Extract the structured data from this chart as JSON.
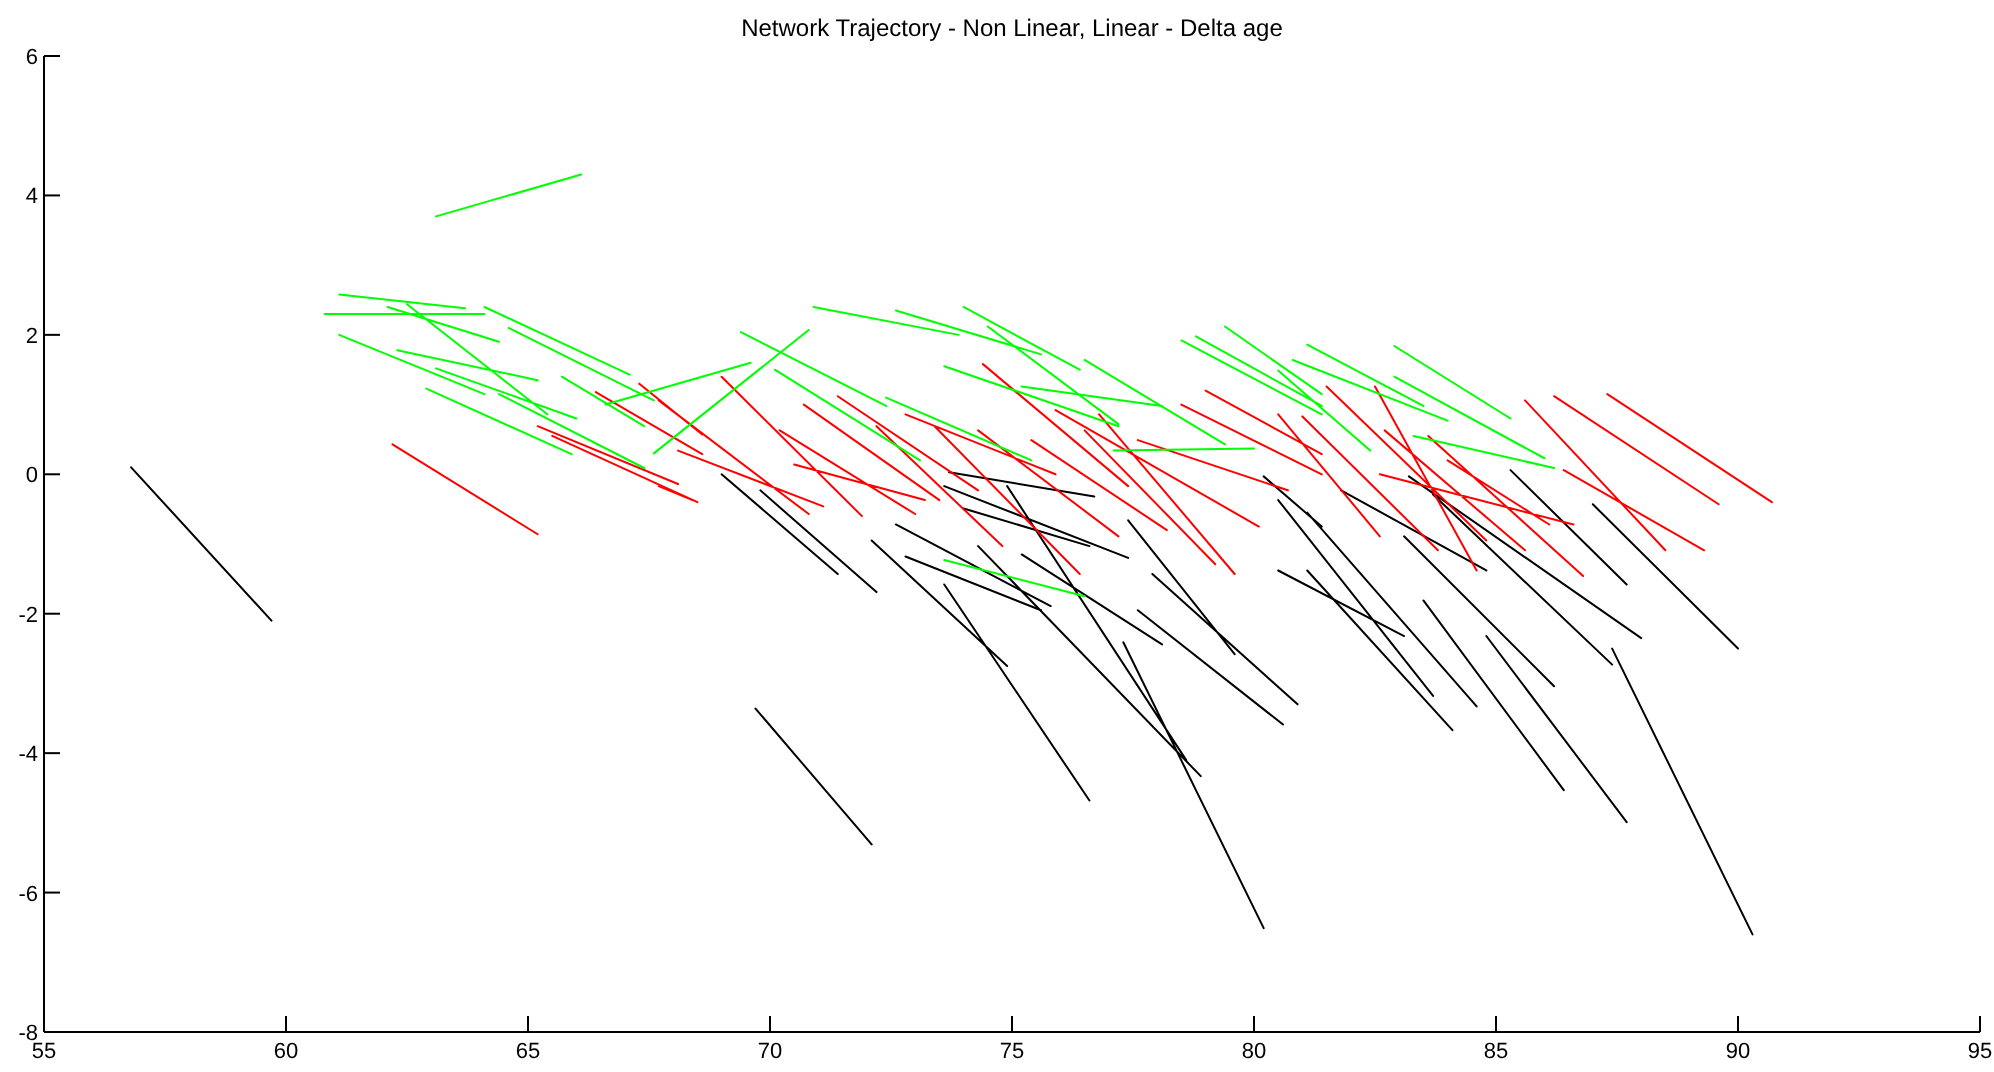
{
  "chart_data": {
    "type": "line",
    "title": "Network Trajectory - Non Linear, Linear - Delta age",
    "xlim": [
      55,
      95
    ],
    "xticks": [
      55,
      60,
      65,
      70,
      75,
      80,
      85,
      90,
      95
    ],
    "ylim": [
      -8,
      6
    ],
    "yticks": [
      -8,
      -6,
      -4,
      -2,
      0,
      2,
      4,
      6
    ],
    "series": [
      {
        "color": "#000000",
        "x": [
          56.8,
          59.7,
          null,
          69.7,
          72.1,
          null,
          73.6,
          76.6,
          null,
          77.3,
          80.2,
          null,
          74.3,
          78.9,
          null,
          74.9,
          78.6,
          null,
          69.0,
          71.4,
          null,
          69.8,
          72.2,
          null,
          72.6,
          75.8,
          null,
          72.8,
          75.6,
          null,
          73.6,
          77.4,
          null,
          73.7,
          76.7,
          null,
          74.0,
          76.6,
          null,
          75.2,
          78.1,
          null,
          72.1,
          74.9,
          null,
          77.6,
          80.6,
          null,
          77.9,
          80.9,
          null,
          77.4,
          79.6,
          null,
          85.3,
          87.7,
          null,
          87.0,
          90.0,
          null,
          87.4,
          90.3,
          null,
          84.8,
          87.7,
          null,
          83.1,
          86.2,
          null,
          83.5,
          86.4,
          null,
          81.8,
          84.8,
          null,
          83.2,
          88.0,
          null,
          83.7,
          87.4,
          null,
          80.5,
          83.1,
          null,
          81.1,
          84.6,
          null,
          81.1,
          84.1,
          null,
          80.5,
          83.7,
          null,
          80.2,
          81.4
        ],
        "values": [
          0.1,
          -2.1,
          null,
          -3.36,
          -5.31,
          null,
          -1.58,
          -4.68,
          null,
          -2.41,
          -6.51,
          null,
          -1.03,
          -4.33,
          null,
          -0.17,
          -4.1,
          null,
          0.0,
          -1.43,
          null,
          -0.23,
          -1.69,
          null,
          -0.72,
          -1.89,
          null,
          -1.18,
          -1.95,
          null,
          -0.17,
          -1.2,
          null,
          0.03,
          -0.32,
          null,
          -0.49,
          -1.03,
          null,
          -1.15,
          -2.44,
          null,
          -0.95,
          -2.75,
          null,
          -1.95,
          -3.59,
          null,
          -1.43,
          -3.3,
          null,
          -0.66,
          -2.58,
          null,
          0.06,
          -1.58,
          null,
          -0.43,
          -2.5,
          null,
          -2.5,
          -6.6,
          null,
          -2.32,
          -4.99,
          null,
          -0.89,
          -3.04,
          null,
          -1.81,
          -4.53,
          null,
          -0.23,
          -1.38,
          null,
          -0.03,
          -2.35,
          null,
          -0.29,
          -2.73,
          null,
          -1.38,
          -2.32,
          null,
          -0.55,
          -3.33,
          null,
          -1.38,
          -3.67,
          null,
          -0.37,
          -3.18,
          null,
          -0.03,
          -0.75
        ]
      },
      {
        "color": "#ff0000",
        "x": [
          62.2,
          65.2,
          null,
          65.2,
          68.1,
          null,
          65.5,
          68.5,
          null,
          66.4,
          68.6,
          null,
          67.3,
          68.6,
          null,
          69.0,
          71.9,
          null,
          67.7,
          70.8,
          null,
          67.7,
          68.4,
          null,
          68.1,
          71.1,
          null,
          70.7,
          73.5,
          null,
          71.4,
          74.3,
          null,
          70.2,
          73.0,
          null,
          70.5,
          73.2,
          null,
          72.8,
          75.9,
          null,
          72.2,
          74.8,
          null,
          73.4,
          76.4,
          null,
          74.4,
          77.4,
          null,
          74.3,
          77.2,
          null,
          75.4,
          78.2,
          null,
          75.9,
          80.1,
          null,
          76.8,
          79.6,
          null,
          76.5,
          79.2,
          null,
          78.5,
          81.4,
          null,
          79.0,
          81.4,
          null,
          77.6,
          80.7,
          null,
          85.6,
          88.5,
          null,
          86.2,
          89.6,
          null,
          87.3,
          90.7,
          null,
          86.4,
          89.3,
          null,
          80.5,
          82.6,
          null,
          81.0,
          83.8,
          null,
          82.5,
          84.6,
          null,
          82.7,
          85.6,
          null,
          81.5,
          84.8,
          null,
          83.6,
          86.8,
          null,
          82.6,
          86.6,
          null,
          84.0,
          86.1
        ],
        "values": [
          0.43,
          -0.86,
          null,
          0.69,
          -0.14,
          null,
          0.55,
          -0.4,
          null,
          1.18,
          0.29,
          null,
          1.3,
          0.57,
          null,
          1.4,
          -0.6,
          null,
          1.06,
          -0.57,
          null,
          -0.17,
          -0.37,
          null,
          0.34,
          -0.46,
          null,
          1.0,
          -0.37,
          null,
          1.12,
          -0.23,
          null,
          0.63,
          -0.57,
          null,
          0.14,
          -0.37,
          null,
          0.86,
          0.0,
          null,
          0.69,
          -1.03,
          null,
          0.69,
          -1.43,
          null,
          1.58,
          -0.17,
          null,
          0.63,
          -0.89,
          null,
          0.49,
          -0.8,
          null,
          0.92,
          -0.75,
          null,
          0.86,
          -1.43,
          null,
          0.63,
          -1.29,
          null,
          1.0,
          0.0,
          null,
          1.2,
          0.29,
          null,
          0.49,
          -0.23,
          null,
          1.06,
          -1.09,
          null,
          1.12,
          -0.43,
          null,
          1.15,
          -0.4,
          null,
          0.06,
          -1.09,
          null,
          0.86,
          -0.89,
          null,
          0.83,
          -1.09,
          null,
          1.26,
          -1.38,
          null,
          0.63,
          -1.09,
          null,
          1.26,
          -0.95,
          null,
          0.55,
          -1.46,
          null,
          0.0,
          -0.72,
          null,
          0.2,
          -0.72
        ]
      },
      {
        "color": "#00ff00",
        "x": [
          63.1,
          66.1,
          null,
          61.1,
          63.7,
          null,
          60.8,
          64.1,
          null,
          62.1,
          64.4,
          null,
          64.1,
          67.1,
          null,
          64.6,
          67.6,
          null,
          62.3,
          65.2,
          null,
          62.5,
          65.4,
          null,
          63.1,
          66.0,
          null,
          62.9,
          65.9,
          null,
          64.4,
          67.4,
          null,
          65.7,
          67.4,
          null,
          66.6,
          69.6,
          null,
          67.6,
          70.8,
          null,
          70.9,
          73.9,
          null,
          72.6,
          75.6,
          null,
          74.0,
          76.4,
          null,
          69.4,
          72.4,
          null,
          70.1,
          73.1,
          null,
          72.4,
          75.4,
          null,
          73.6,
          77.2,
          null,
          75.2,
          78.1,
          null,
          74.5,
          77.2,
          null,
          76.5,
          79.4,
          null,
          77.1,
          80.0,
          null,
          73.6,
          76.5,
          null,
          78.8,
          81.4,
          null,
          78.5,
          81.4,
          null,
          79.4,
          81.4,
          null,
          81.1,
          83.5,
          null,
          82.9,
          85.3,
          null,
          82.9,
          86.0,
          null,
          80.8,
          84.0,
          null,
          80.5,
          82.4,
          null,
          83.3,
          86.2,
          null,
          61.1,
          64.1
        ],
        "values": [
          3.7,
          4.3,
          null,
          2.58,
          2.38,
          null,
          2.3,
          2.3,
          null,
          2.4,
          1.9,
          null,
          2.4,
          1.43,
          null,
          2.1,
          1.06,
          null,
          1.78,
          1.35,
          null,
          2.44,
          0.86,
          null,
          1.52,
          0.8,
          null,
          1.23,
          0.29,
          null,
          1.15,
          0.09,
          null,
          1.4,
          0.69,
          null,
          1.0,
          1.6,
          null,
          0.3,
          2.07,
          null,
          2.4,
          2.0,
          null,
          2.35,
          1.72,
          null,
          2.4,
          1.5,
          null,
          2.04,
          0.98,
          null,
          1.5,
          0.2,
          null,
          1.1,
          0.2,
          null,
          1.55,
          0.69,
          null,
          1.26,
          0.98,
          null,
          2.12,
          0.72,
          null,
          1.64,
          0.43,
          null,
          0.34,
          0.37,
          null,
          -1.23,
          -1.75,
          null,
          1.98,
          0.98,
          null,
          1.92,
          0.86,
          null,
          2.12,
          1.15,
          null,
          1.86,
          0.98,
          null,
          1.84,
          0.8,
          null,
          1.4,
          0.23,
          null,
          1.64,
          0.77,
          null,
          1.49,
          0.34,
          null,
          0.55,
          0.09,
          null,
          2.0,
          1.15
        ]
      }
    ]
  }
}
